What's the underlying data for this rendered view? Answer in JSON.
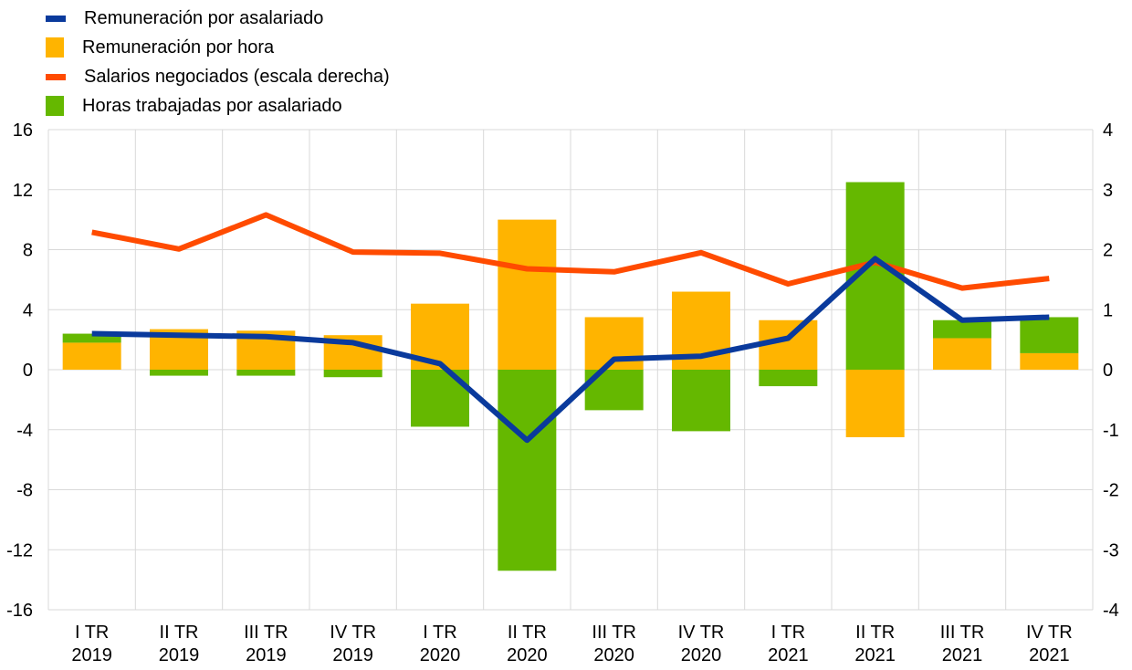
{
  "chart_data": {
    "type": "bar",
    "categories": [
      [
        "I TR",
        "2019"
      ],
      [
        "II TR",
        "2019"
      ],
      [
        "III TR",
        "2019"
      ],
      [
        "IV TR",
        "2019"
      ],
      [
        "I TR",
        "2020"
      ],
      [
        "II TR",
        "2020"
      ],
      [
        "III TR",
        "2020"
      ],
      [
        "IV TR",
        "2020"
      ],
      [
        "I TR",
        "2021"
      ],
      [
        "II TR",
        "2021"
      ],
      [
        "III TR",
        "2021"
      ],
      [
        "IV TR",
        "2021"
      ]
    ],
    "left_axis": {
      "min": -16,
      "max": 16,
      "ticks": [
        "16",
        "12",
        "8",
        "4",
        "0",
        "-4",
        "-8",
        "-12",
        "-16"
      ]
    },
    "right_axis": {
      "min": -4,
      "max": 4,
      "ticks": [
        "4",
        "3",
        "2",
        "1",
        "0",
        "-1",
        "-2",
        "-3",
        "-4"
      ]
    },
    "grid": true,
    "legend_position": "top-left",
    "series": [
      {
        "name": "Remuneración por asalariado",
        "type": "line",
        "axis": "left",
        "color": "#0a3a9c",
        "values": [
          2.4,
          2.3,
          2.2,
          1.8,
          0.4,
          -4.7,
          0.7,
          0.9,
          2.1,
          7.4,
          3.3,
          3.5
        ]
      },
      {
        "name": "Remuneración por hora",
        "type": "bar",
        "axis": "left",
        "color": "#ffb400",
        "values": [
          1.8,
          2.7,
          2.6,
          2.3,
          4.4,
          10.0,
          3.5,
          5.2,
          3.3,
          -4.5,
          2.1,
          1.1
        ]
      },
      {
        "name": "Salarios negociados (escala derecha)",
        "type": "line",
        "axis": "right",
        "color": "#ff4b00",
        "values": [
          2.29,
          2.01,
          2.58,
          1.96,
          1.94,
          1.68,
          1.63,
          1.95,
          1.43,
          1.79,
          1.36,
          1.52
        ]
      },
      {
        "name": "Horas trabajadas por asalariado",
        "type": "bar",
        "axis": "left",
        "color": "#65b800",
        "values": [
          0.6,
          -0.4,
          -0.4,
          -0.5,
          -3.8,
          -13.4,
          -2.7,
          -4.1,
          -1.1,
          12.5,
          1.2,
          2.4
        ]
      }
    ]
  }
}
